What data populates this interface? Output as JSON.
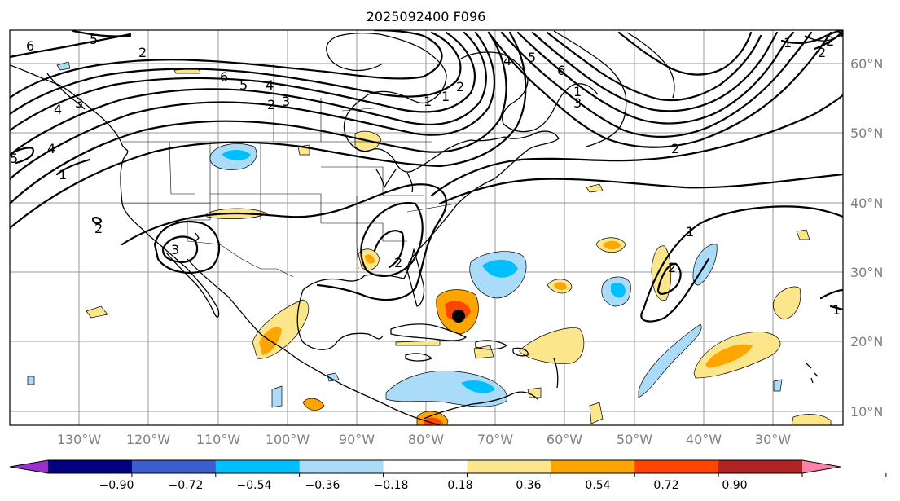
{
  "title": "2025092400 F096",
  "map": {
    "lon_ticks": [
      "130°W",
      "120°W",
      "110°W",
      "100°W",
      "90°W",
      "80°W",
      "70°W",
      "60°W",
      "50°W",
      "40°W",
      "30°W"
    ],
    "lat_ticks": [
      "60°N",
      "50°N",
      "40°N",
      "30°N",
      "20°N",
      "10°N"
    ],
    "contour_labels": [
      "6",
      "5",
      "6",
      "5",
      "4",
      "3",
      "2",
      "3",
      "4",
      "5",
      "4",
      "1",
      "2",
      "3",
      "2",
      "2",
      "1",
      "2",
      "3",
      "6",
      "5",
      "4",
      "3",
      "2",
      "1",
      "2",
      "1",
      "1",
      "2",
      "1",
      "2",
      "1"
    ]
  },
  "colorbar": {
    "tick_labels": [
      "−0.90",
      "−0.72",
      "−0.54",
      "−0.36",
      "−0.18",
      "0.18",
      "0.36",
      "0.54",
      "0.72",
      "0.90"
    ],
    "colors": [
      "#9932cc",
      "#000080",
      "#3a5fcd",
      "#00bfff",
      "#aadcfa",
      "#ffffff",
      "#fce68c",
      "#ffa500",
      "#ff4500",
      "#b22222",
      "#ff82ab"
    ]
  }
}
